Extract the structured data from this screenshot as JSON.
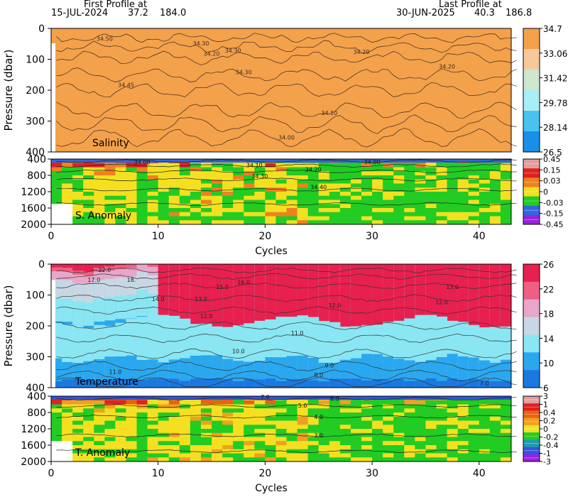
{
  "header": {
    "first_label": "First Profile at",
    "first_date": "15-JUL-2024",
    "first_lat": "37.2",
    "first_lon": "184.0",
    "last_label": "Last Profile at",
    "last_date": "30-JUN-2025",
    "last_lat": "40.3",
    "last_lon": "186.8"
  },
  "chart_data": [
    {
      "type": "heatmap",
      "id": "salinity",
      "panel_label": "Salinity",
      "ylabel": "Pressure (dbar)",
      "xlim": [
        0,
        43
      ],
      "ylim": [
        400,
        0
      ],
      "yticks": [
        0,
        100,
        200,
        300,
        400
      ],
      "colorbar_levels": [
        "34.7",
        "33.06",
        "31.42",
        "29.78",
        "28.14",
        "26.5"
      ],
      "colorbar_colors": [
        "#f4a14b",
        "#f7c99a",
        "#cfe6cf",
        "#a9eef4",
        "#49c2f0",
        "#1a8fe8"
      ],
      "contour_labels": [
        {
          "text": "34.50",
          "x": 5,
          "y": 40
        },
        {
          "text": "34.30",
          "x": 14,
          "y": 55
        },
        {
          "text": "34.30",
          "x": 17,
          "y": 78
        },
        {
          "text": "34.20",
          "x": 15,
          "y": 88
        },
        {
          "text": "34.30",
          "x": 18,
          "y": 148
        },
        {
          "text": "34.45",
          "x": 7,
          "y": 190
        },
        {
          "text": "34.20",
          "x": 29,
          "y": 83
        },
        {
          "text": "34.20",
          "x": 37,
          "y": 130
        },
        {
          "text": "34.10",
          "x": 26,
          "y": 280
        },
        {
          "text": "34.00",
          "x": 22,
          "y": 360
        }
      ]
    },
    {
      "type": "heatmap",
      "id": "salinity_anomaly",
      "panel_label": "S. Anomaly",
      "ylim": [
        2000,
        400
      ],
      "yticks": [
        400,
        800,
        1200,
        1600,
        2000
      ],
      "xticks": [
        0,
        10,
        20,
        30,
        40
      ],
      "xlabel": "Cycles",
      "colorbar_levels": [
        "0.45",
        "0.15",
        "0.03",
        "0",
        "-0.03",
        "-0.15",
        "-0.45"
      ],
      "colorbar_colors": [
        "#e0a0a0",
        "#dd2222",
        "#f08020",
        "#f4e020",
        "#22cc22",
        "#3366dd",
        "#9922dd"
      ],
      "contour_labels": [
        {
          "text": "34.00",
          "x": 8.5,
          "y": 475
        },
        {
          "text": "34.10",
          "x": 19,
          "y": 545
        },
        {
          "text": "34.00",
          "x": 30,
          "y": 470
        },
        {
          "text": "34.20",
          "x": 24.5,
          "y": 650
        },
        {
          "text": "34.30",
          "x": 19.5,
          "y": 820
        },
        {
          "text": "34.40",
          "x": 25,
          "y": 1090
        }
      ]
    },
    {
      "type": "heatmap",
      "id": "temperature",
      "panel_label": "Temperature",
      "ylabel": "Pressure (dbar)",
      "xlim": [
        0,
        43
      ],
      "ylim": [
        400,
        0
      ],
      "yticks": [
        0,
        100,
        200,
        300,
        400
      ],
      "colorbar_levels": [
        "26",
        "22",
        "18",
        "14",
        "10",
        "6"
      ],
      "colorbar_colors": [
        "#e8204f",
        "#ef5f85",
        "#e8a6c8",
        "#c7d7e3",
        "#8ae6f2",
        "#2aa8ef",
        "#1a78e0"
      ],
      "contour_labels": [
        {
          "text": "22.0",
          "x": 5,
          "y": 25
        },
        {
          "text": "17.0",
          "x": 4,
          "y": 58
        },
        {
          "text": "18.",
          "x": 7.5,
          "y": 58
        },
        {
          "text": "15.0",
          "x": 16,
          "y": 80
        },
        {
          "text": "16.0",
          "x": 18,
          "y": 65
        },
        {
          "text": "14.0",
          "x": 10,
          "y": 120
        },
        {
          "text": "13.0",
          "x": 14,
          "y": 120
        },
        {
          "text": "12.0",
          "x": 14.5,
          "y": 175
        },
        {
          "text": "12.0",
          "x": 26.5,
          "y": 140
        },
        {
          "text": "12.0",
          "x": 36.5,
          "y": 130
        },
        {
          "text": "13.0",
          "x": 37.5,
          "y": 80
        },
        {
          "text": "11.0",
          "x": 23,
          "y": 230
        },
        {
          "text": "10.0",
          "x": 17.5,
          "y": 288
        },
        {
          "text": "11.0",
          "x": 6,
          "y": 355
        },
        {
          "text": "9.0",
          "x": 26,
          "y": 335
        },
        {
          "text": "8.0",
          "x": 25,
          "y": 365
        },
        {
          "text": "7.0",
          "x": 40.5,
          "y": 393
        }
      ]
    },
    {
      "type": "heatmap",
      "id": "temperature_anomaly",
      "panel_label": "T. Anomaly",
      "ylim": [
        2000,
        400
      ],
      "yticks": [
        400,
        800,
        1200,
        1600,
        2000
      ],
      "xticks": [
        0,
        10,
        20,
        30,
        40
      ],
      "xlabel": "Cycles",
      "colorbar_levels": [
        "3",
        "1",
        "0.4",
        "0.2",
        "0",
        "-0.2",
        "-0.4",
        "-1",
        "-3"
      ],
      "colorbar_colors": [
        "#e0a0a0",
        "#dd2222",
        "#ee6010",
        "#f0a020",
        "#f4e020",
        "#22cc22",
        "#2299aa",
        "#3355dd",
        "#9922dd"
      ],
      "contour_labels": [
        {
          "text": "7.0",
          "x": 20,
          "y": 420
        },
        {
          "text": "6.0",
          "x": 26.5,
          "y": 460
        },
        {
          "text": "5.0",
          "x": 23.5,
          "y": 625
        },
        {
          "text": "4.0",
          "x": 25,
          "y": 900
        },
        {
          "text": "3.0",
          "x": 25,
          "y": 1360
        }
      ]
    }
  ]
}
